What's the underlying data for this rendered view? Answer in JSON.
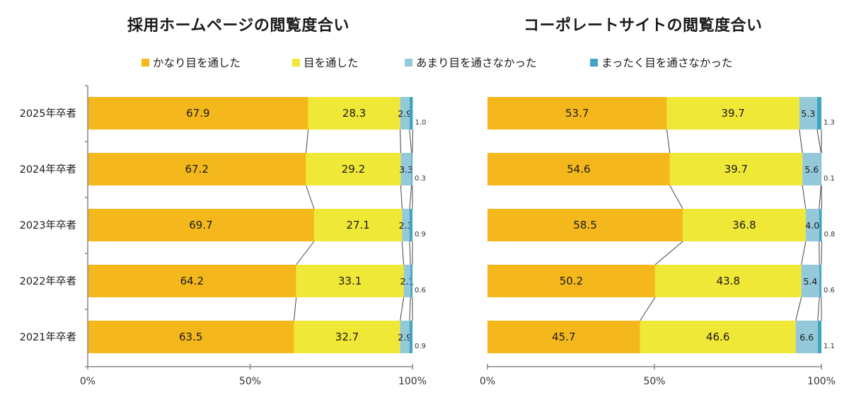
{
  "legend": [
    {
      "label": "かなり目を通した",
      "color": "#F5B81C"
    },
    {
      "label": "目を通した",
      "color": "#F0E836"
    },
    {
      "label": "あまり目を通さなかった",
      "color": "#93C9D9"
    },
    {
      "label": "まったく目を通さなかった",
      "color": "#3FA4C0"
    }
  ],
  "chart_data": [
    {
      "type": "bar",
      "orientation": "horizontal",
      "stacked": "percent",
      "title": "採用ホームページの閲覧度合い",
      "categories": [
        "2025年卒者",
        "2024年卒者",
        "2023年卒者",
        "2022年卒者",
        "2021年卒者"
      ],
      "series": [
        {
          "name": "かなり目を通した",
          "values": [
            67.9,
            67.2,
            69.7,
            64.2,
            63.5
          ]
        },
        {
          "name": "目を通した",
          "values": [
            28.3,
            29.2,
            27.1,
            33.1,
            32.7
          ]
        },
        {
          "name": "あまり目を通さなかった",
          "values": [
            2.9,
            3.3,
            2.3,
            2.1,
            2.9
          ]
        },
        {
          "name": "まったく目を通さなかった",
          "values": [
            1.0,
            0.3,
            0.9,
            0.6,
            0.9
          ]
        }
      ],
      "xlim": [
        0,
        100
      ],
      "xticks": [
        "0%",
        "50%",
        "100%"
      ],
      "series_lines": true,
      "legend": "top"
    },
    {
      "type": "bar",
      "orientation": "horizontal",
      "stacked": "percent",
      "title": "コーポレートサイトの閲覧度合い",
      "categories": [
        "2025年卒者",
        "2024年卒者",
        "2023年卒者",
        "2022年卒者",
        "2021年卒者"
      ],
      "series": [
        {
          "name": "かなり目を通した",
          "values": [
            53.7,
            54.6,
            58.5,
            50.2,
            45.7
          ]
        },
        {
          "name": "目を通した",
          "values": [
            39.7,
            39.7,
            36.8,
            43.8,
            46.6
          ]
        },
        {
          "name": "あまり目を通さなかった",
          "values": [
            5.3,
            5.6,
            4.0,
            5.4,
            6.6
          ]
        },
        {
          "name": "まったく目を通さなかった",
          "values": [
            1.3,
            0.1,
            0.8,
            0.6,
            1.1
          ]
        }
      ],
      "xlim": [
        0,
        100
      ],
      "xticks": [
        "0%",
        "50%",
        "100%"
      ],
      "series_lines": true,
      "legend": "top"
    }
  ]
}
